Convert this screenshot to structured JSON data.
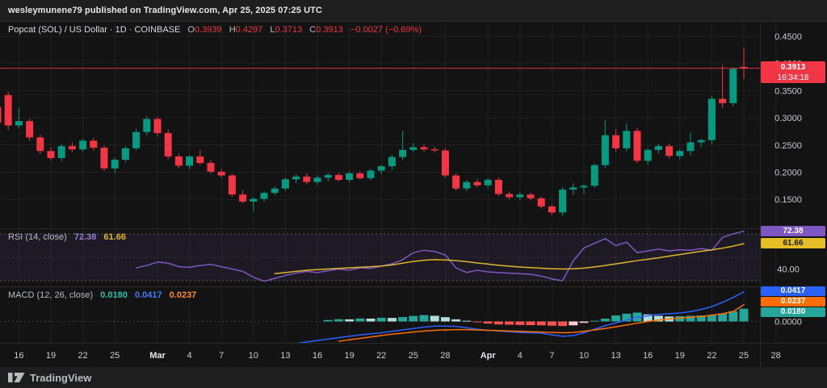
{
  "header": {
    "text": "wesleymunene79 published on TradingView.com, Apr 25, 2025 07:25 UTC"
  },
  "legend": {
    "title": "Popcat (SOL) / US Dollar · 1D · COINBASE",
    "o_label": "O",
    "o": "0.3939",
    "h_label": "H",
    "h": "0.4297",
    "l_label": "L",
    "l": "0.3713",
    "c_label": "C",
    "c": "0.3913",
    "change": "−0.0027 (−0.69%)"
  },
  "price_badge": {
    "price": "0.3913",
    "countdown": "16:34:18"
  },
  "rsi": {
    "label": "RSI",
    "params": "(14, close)",
    "value": "72.38",
    "ma_value": "61.66",
    "axis_label": "40.00"
  },
  "macd": {
    "label": "MACD",
    "params": "(12, 26, close)",
    "hist_value": "0.0180",
    "macd_value": "0.0417",
    "signal_value": "0.0237",
    "axis_label": "0.0000"
  },
  "footer": {
    "brand": "TradingView"
  },
  "colors": {
    "background": "#131313",
    "bar": "#1e1e1e",
    "up": "#089981",
    "down": "#f23645",
    "accent_red": "#f23645",
    "rsi_line": "#7e57c2",
    "rsi_ma": "#e0b52e",
    "rsi_band_fill": "rgba(126,87,194,0.10)",
    "macd_line": "#2962ff",
    "signal_line": "#ff6d00",
    "hist_up": "#26a69a",
    "hist_up_fade": "#b2dfdb",
    "hist_down": "#ff5252",
    "hist_down_fade": "#fccbcd",
    "grid": "rgba(255,255,255,0.06)",
    "axis_text": "#c9cbcf",
    "month_text": "#e3e5e8"
  },
  "chart_data": {
    "type": "candlestick",
    "title": "Popcat (SOL) / US Dollar",
    "interval": "1D",
    "exchange": "COINBASE",
    "last": {
      "open": 0.3939,
      "high": 0.4297,
      "low": 0.3713,
      "close": 0.3913,
      "change": -0.0027,
      "change_pct": -0.69
    },
    "last_price_line": 0.3913,
    "price_axis_ticks": [
      "0.4500",
      "0.4000",
      "0.3500",
      "0.3000",
      "0.2500",
      "0.2000",
      "0.1500"
    ],
    "time_axis": [
      {
        "label": "16",
        "i": 2
      },
      {
        "label": "19",
        "i": 5
      },
      {
        "label": "22",
        "i": 8
      },
      {
        "label": "25",
        "i": 11
      },
      {
        "label": "Mar",
        "i": 15,
        "month": true
      },
      {
        "label": "4",
        "i": 18
      },
      {
        "label": "7",
        "i": 21
      },
      {
        "label": "10",
        "i": 24
      },
      {
        "label": "13",
        "i": 27
      },
      {
        "label": "16",
        "i": 30
      },
      {
        "label": "19",
        "i": 33
      },
      {
        "label": "22",
        "i": 36
      },
      {
        "label": "25",
        "i": 39
      },
      {
        "label": "28",
        "i": 42
      },
      {
        "label": "Apr",
        "i": 46,
        "month": true
      },
      {
        "label": "4",
        "i": 49
      },
      {
        "label": "7",
        "i": 52
      },
      {
        "label": "10",
        "i": 55
      },
      {
        "label": "13",
        "i": 58
      },
      {
        "label": "16",
        "i": 61
      },
      {
        "label": "19",
        "i": 64
      },
      {
        "label": "22",
        "i": 67
      },
      {
        "label": "25",
        "i": 70
      },
      {
        "label": "28",
        "i": 73
      }
    ],
    "candles": [
      [
        "Feb 14",
        0.32,
        0.348,
        0.282,
        0.291
      ],
      [
        "Feb 15",
        0.342,
        0.348,
        0.278,
        0.286
      ],
      [
        "Feb 16",
        0.286,
        0.318,
        0.28,
        0.294
      ],
      [
        "Feb 17",
        0.294,
        0.298,
        0.258,
        0.264
      ],
      [
        "Feb 18",
        0.264,
        0.269,
        0.233,
        0.239
      ],
      [
        "Feb 19",
        0.239,
        0.246,
        0.221,
        0.226
      ],
      [
        "Feb 20",
        0.226,
        0.252,
        0.22,
        0.248
      ],
      [
        "Feb 21",
        0.248,
        0.255,
        0.237,
        0.242
      ],
      [
        "Feb 22",
        0.242,
        0.262,
        0.238,
        0.258
      ],
      [
        "Feb 23",
        0.258,
        0.263,
        0.24,
        0.245
      ],
      [
        "Feb 24",
        0.245,
        0.249,
        0.202,
        0.207
      ],
      [
        "Feb 25",
        0.207,
        0.227,
        0.198,
        0.223
      ],
      [
        "Feb 26",
        0.223,
        0.248,
        0.218,
        0.244
      ],
      [
        "Feb 27",
        0.244,
        0.28,
        0.24,
        0.274
      ],
      [
        "Feb 28",
        0.274,
        0.304,
        0.268,
        0.298
      ],
      [
        "Mar 1",
        0.298,
        0.302,
        0.266,
        0.272
      ],
      [
        "Mar 2",
        0.272,
        0.278,
        0.224,
        0.229
      ],
      [
        "Mar 3",
        0.229,
        0.234,
        0.207,
        0.212
      ],
      [
        "Mar 4",
        0.212,
        0.232,
        0.206,
        0.229
      ],
      [
        "Mar 5",
        0.229,
        0.241,
        0.213,
        0.217
      ],
      [
        "Mar 6",
        0.217,
        0.222,
        0.197,
        0.201
      ],
      [
        "Mar 7",
        0.201,
        0.206,
        0.19,
        0.194
      ],
      [
        "Mar 8",
        0.194,
        0.197,
        0.155,
        0.159
      ],
      [
        "Mar 9",
        0.159,
        0.167,
        0.143,
        0.146
      ],
      [
        "Mar 10",
        0.146,
        0.154,
        0.128,
        0.151
      ],
      [
        "Mar 11",
        0.151,
        0.165,
        0.146,
        0.162
      ],
      [
        "Mar 12",
        0.162,
        0.174,
        0.157,
        0.17
      ],
      [
        "Mar 13",
        0.17,
        0.19,
        0.166,
        0.187
      ],
      [
        "Mar 14",
        0.187,
        0.196,
        0.18,
        0.192
      ],
      [
        "Mar 15",
        0.192,
        0.198,
        0.178,
        0.182
      ],
      [
        "Mar 16",
        0.182,
        0.194,
        0.177,
        0.19
      ],
      [
        "Mar 17",
        0.19,
        0.198,
        0.184,
        0.195
      ],
      [
        "Mar 18",
        0.195,
        0.199,
        0.183,
        0.186
      ],
      [
        "Mar 19",
        0.186,
        0.201,
        0.182,
        0.198
      ],
      [
        "Mar 20",
        0.198,
        0.202,
        0.186,
        0.189
      ],
      [
        "Mar 21",
        0.189,
        0.206,
        0.185,
        0.203
      ],
      [
        "Mar 22",
        0.203,
        0.214,
        0.196,
        0.211
      ],
      [
        "Mar 23",
        0.211,
        0.232,
        0.204,
        0.228
      ],
      [
        "Mar 24",
        0.228,
        0.276,
        0.222,
        0.241
      ],
      [
        "Mar 25",
        0.241,
        0.254,
        0.236,
        0.246
      ],
      [
        "Mar 26",
        0.246,
        0.251,
        0.238,
        0.242
      ],
      [
        "Mar 27",
        0.242,
        0.247,
        0.236,
        0.24
      ],
      [
        "Mar 28",
        0.24,
        0.244,
        0.19,
        0.194
      ],
      [
        "Mar 29",
        0.194,
        0.198,
        0.166,
        0.17
      ],
      [
        "Mar 30",
        0.17,
        0.186,
        0.165,
        0.182
      ],
      [
        "Mar 31",
        0.182,
        0.188,
        0.172,
        0.176
      ],
      [
        "Apr 1",
        0.176,
        0.189,
        0.171,
        0.186
      ],
      [
        "Apr 2",
        0.186,
        0.19,
        0.156,
        0.16
      ],
      [
        "Apr 3",
        0.16,
        0.165,
        0.15,
        0.154
      ],
      [
        "Apr 4",
        0.154,
        0.163,
        0.149,
        0.159
      ],
      [
        "Apr 5",
        0.159,
        0.162,
        0.148,
        0.152
      ],
      [
        "Apr 6",
        0.152,
        0.156,
        0.133,
        0.137
      ],
      [
        "Apr 7",
        0.137,
        0.141,
        0.121,
        0.126
      ],
      [
        "Apr 8",
        0.126,
        0.172,
        0.12,
        0.168
      ],
      [
        "Apr 9",
        0.168,
        0.18,
        0.158,
        0.172
      ],
      [
        "Apr 10",
        0.172,
        0.178,
        0.16,
        0.175
      ],
      [
        "Apr 11",
        0.175,
        0.216,
        0.171,
        0.213
      ],
      [
        "Apr 12",
        0.213,
        0.296,
        0.208,
        0.268
      ],
      [
        "Apr 13",
        0.268,
        0.279,
        0.238,
        0.244
      ],
      [
        "Apr 14",
        0.244,
        0.29,
        0.239,
        0.276
      ],
      [
        "Apr 15",
        0.276,
        0.281,
        0.216,
        0.221
      ],
      [
        "Apr 16",
        0.221,
        0.245,
        0.214,
        0.241
      ],
      [
        "Apr 17",
        0.241,
        0.252,
        0.234,
        0.248
      ],
      [
        "Apr 18",
        0.248,
        0.253,
        0.225,
        0.23
      ],
      [
        "Apr 19",
        0.23,
        0.243,
        0.224,
        0.239
      ],
      [
        "Apr 20",
        0.239,
        0.273,
        0.231,
        0.255
      ],
      [
        "Apr 21",
        0.255,
        0.262,
        0.246,
        0.259
      ],
      [
        "Apr 22",
        0.259,
        0.341,
        0.251,
        0.335
      ],
      [
        "Apr 23",
        0.335,
        0.397,
        0.318,
        0.327
      ],
      [
        "Apr 24",
        0.327,
        0.393,
        0.321,
        0.39
      ],
      [
        "Apr 25",
        0.3939,
        0.4297,
        0.3713,
        0.3913
      ]
    ],
    "rsi_series": {
      "start_index": 13,
      "levels": [
        70,
        50,
        30
      ],
      "values": [
        41,
        43,
        46,
        45,
        42,
        41.5,
        43,
        44,
        42,
        40,
        38,
        33,
        29.5,
        32,
        34.5,
        36.5,
        38,
        37,
        38.5,
        40,
        39,
        41,
        40.5,
        42.5,
        44.5,
        48,
        54,
        56,
        55,
        52,
        41,
        37,
        39,
        37.5,
        37,
        36.5,
        36,
        35.5,
        34,
        31.5,
        30,
        47,
        58,
        62,
        66,
        60,
        63,
        54,
        55.5,
        57,
        55.5,
        56.5,
        56,
        57.5,
        56,
        67,
        70,
        72.38
      ]
    },
    "rsi_ma_series": {
      "start_index": 26,
      "values": [
        36,
        37,
        38,
        39,
        39.5,
        40,
        40.5,
        41,
        41.5,
        42,
        42.5,
        43.5,
        45,
        46.5,
        47.5,
        48,
        47.8,
        47.2,
        46.3,
        45.2,
        44.2,
        43.2,
        42.4,
        41.7,
        41.2,
        40.7,
        40.3,
        40,
        40.2,
        40.8,
        41.8,
        43,
        44.4,
        45.8,
        47.2,
        48.4,
        49.6,
        51,
        52.4,
        53.8,
        55.2,
        56.4,
        57.8,
        59.6,
        61.66
      ]
    },
    "macd_series": {
      "start_index": 24,
      "values": [
        -0.034,
        -0.0345,
        -0.034,
        -0.033,
        -0.031,
        -0.029,
        -0.027,
        -0.025,
        -0.023,
        -0.021,
        -0.019,
        -0.0175,
        -0.016,
        -0.014,
        -0.012,
        -0.01,
        -0.008,
        -0.0065,
        -0.0065,
        -0.007,
        -0.009,
        -0.011,
        -0.0125,
        -0.0135,
        -0.0145,
        -0.0155,
        -0.016,
        -0.0165,
        -0.019,
        -0.021,
        -0.02,
        -0.016,
        -0.011,
        -0.006,
        -0.002,
        0.002,
        0.006,
        0.008,
        0.01,
        0.011,
        0.012,
        0.014,
        0.017,
        0.021,
        0.027,
        0.034,
        0.0417
      ]
    },
    "signal_series": {
      "start_index": 32,
      "values": [
        -0.028,
        -0.026,
        -0.024,
        -0.022,
        -0.02,
        -0.018,
        -0.0165,
        -0.015,
        -0.0135,
        -0.0125,
        -0.012,
        -0.0115,
        -0.0115,
        -0.012,
        -0.0125,
        -0.013,
        -0.0135,
        -0.014,
        -0.0145,
        -0.015,
        -0.0155,
        -0.016,
        -0.0155,
        -0.014,
        -0.012,
        -0.01,
        -0.0075,
        -0.005,
        -0.0025,
        0.0,
        0.002,
        0.0035,
        0.005,
        0.006,
        0.007,
        0.009,
        0.011,
        0.014,
        0.0237
      ]
    },
    "hist_series": {
      "start_index": 31,
      "values": [
        0.002,
        0.0032,
        0.003,
        0.0042,
        0.004,
        0.0052,
        0.005,
        0.0062,
        0.0078,
        0.009,
        0.008,
        0.006,
        0.003,
        0.001,
        -0.001,
        -0.003,
        -0.0042,
        -0.0046,
        -0.005,
        -0.0052,
        -0.0055,
        -0.006,
        -0.0065,
        -0.0055,
        -0.002,
        0.001,
        0.004,
        0.0085,
        0.011,
        0.0125,
        0.01,
        0.008,
        0.007,
        0.0075,
        0.008,
        0.0085,
        0.009,
        0.011,
        0.0145,
        0.018
      ]
    }
  }
}
